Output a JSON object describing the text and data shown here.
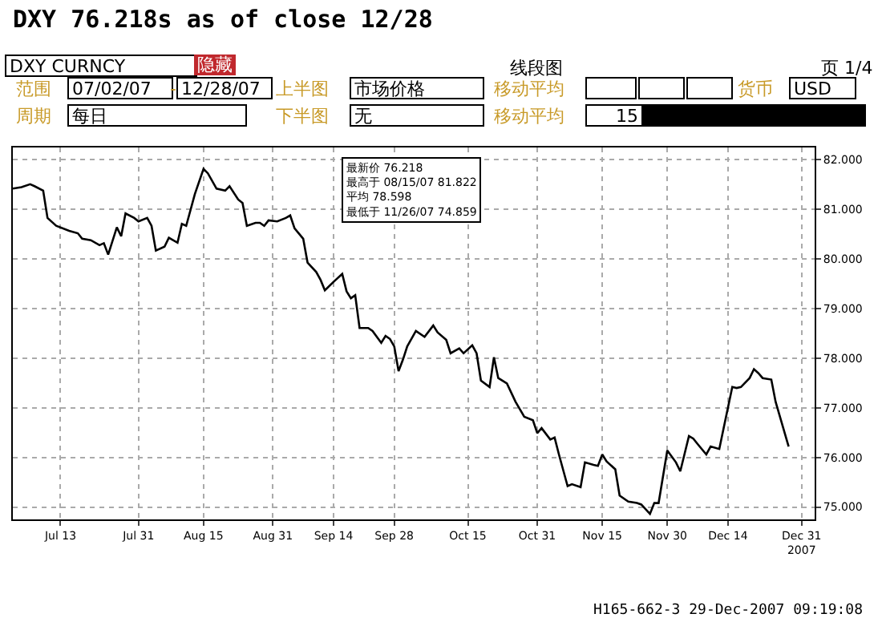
{
  "chart_data": {
    "type": "line",
    "title": "DXY 76.218s as of close 12/28",
    "annotations": [
      "DXY CURNCY",
      "隐藏",
      "线段图",
      "页 1/4",
      "范围",
      "07/02/07",
      "-",
      "12/28/07",
      "上半图",
      "市场价格",
      "移动平均",
      "货币",
      "USD",
      "周期",
      "每日",
      "下半图",
      "无",
      "移动平均",
      "15",
      "最新价 76.218",
      "最高于 08/15/07 81.822",
      "平均 78.598",
      "最低于 11/26/07 74.859",
      "H165-662-3 29-Dec-2007 09:19:08"
    ],
    "x": [
      "2007-07-02",
      "2007-07-04",
      "2007-07-06",
      "2007-07-07",
      "2007-07-09",
      "2007-07-10",
      "2007-07-12",
      "2007-07-15",
      "2007-07-17",
      "2007-07-18",
      "2007-07-20",
      "2007-07-22",
      "2007-07-23",
      "2007-07-24",
      "2007-07-26",
      "2007-07-27",
      "2007-07-28",
      "2007-07-30",
      "2007-07-31",
      "2007-08-02",
      "2007-08-03",
      "2007-08-04",
      "2007-08-06",
      "2007-08-07",
      "2007-08-09",
      "2007-08-10",
      "2007-08-11",
      "2007-08-13",
      "2007-08-15",
      "2007-08-16",
      "2007-08-18",
      "2007-08-20",
      "2007-08-21",
      "2007-08-23",
      "2007-08-24",
      "2007-08-25",
      "2007-08-27",
      "2007-08-28",
      "2007-08-29",
      "2007-08-30",
      "2007-09-01",
      "2007-09-03",
      "2007-09-04",
      "2007-09-05",
      "2007-09-07",
      "2007-09-08",
      "2007-09-10",
      "2007-09-11",
      "2007-09-12",
      "2007-09-14",
      "2007-09-16",
      "2007-09-17",
      "2007-09-18",
      "2007-09-19",
      "2007-09-20",
      "2007-09-22",
      "2007-09-23",
      "2007-09-25",
      "2007-09-26",
      "2007-09-27",
      "2007-09-28",
      "2007-09-29",
      "2007-09-30",
      "2007-10-01",
      "2007-10-03",
      "2007-10-05",
      "2007-10-07",
      "2007-10-08",
      "2007-10-10",
      "2007-10-11",
      "2007-10-13",
      "2007-10-14",
      "2007-10-16",
      "2007-10-17",
      "2007-10-18",
      "2007-10-20",
      "2007-10-21",
      "2007-10-22",
      "2007-10-24",
      "2007-10-26",
      "2007-10-28",
      "2007-10-30",
      "2007-10-31",
      "2007-11-01",
      "2007-11-03",
      "2007-11-04",
      "2007-11-05",
      "2007-11-07",
      "2007-11-08",
      "2007-11-10",
      "2007-11-11",
      "2007-11-13",
      "2007-11-14",
      "2007-11-15",
      "2007-11-16",
      "2007-11-18",
      "2007-11-19",
      "2007-11-21",
      "2007-11-23",
      "2007-11-24",
      "2007-11-26",
      "2007-11-27",
      "2007-11-28",
      "2007-11-30",
      "2007-12-02",
      "2007-12-03",
      "2007-12-05",
      "2007-12-06",
      "2007-12-07",
      "2007-12-09",
      "2007-12-10",
      "2007-12-12",
      "2007-12-13",
      "2007-12-15",
      "2007-12-16",
      "2007-12-17",
      "2007-12-19",
      "2007-12-20",
      "2007-12-21",
      "2007-12-22",
      "2007-12-24",
      "2007-12-25",
      "2007-12-28"
    ],
    "series": [
      {
        "color": "#000000",
        "values": [
          81.42,
          81.45,
          81.51,
          81.47,
          81.38,
          80.83,
          80.67,
          80.57,
          80.52,
          80.41,
          80.38,
          80.28,
          80.32,
          80.09,
          80.64,
          80.46,
          80.92,
          80.83,
          80.76,
          80.83,
          80.67,
          80.17,
          80.25,
          80.43,
          80.33,
          80.71,
          80.67,
          81.31,
          81.82,
          81.73,
          81.42,
          81.38,
          81.47,
          81.2,
          81.13,
          80.67,
          80.73,
          80.73,
          80.67,
          80.78,
          80.76,
          80.83,
          80.88,
          80.62,
          80.41,
          79.93,
          79.74,
          79.58,
          79.37,
          79.54,
          79.7,
          79.35,
          79.21,
          79.27,
          78.61,
          78.61,
          78.55,
          78.31,
          78.45,
          78.39,
          78.24,
          77.74,
          77.97,
          78.24,
          78.55,
          78.43,
          78.66,
          78.52,
          78.37,
          78.1,
          78.2,
          78.1,
          78.26,
          78.1,
          77.55,
          77.42,
          78.02,
          77.6,
          77.49,
          77.12,
          76.82,
          76.75,
          76.49,
          76.59,
          76.36,
          76.4,
          76.06,
          75.42,
          75.46,
          75.4,
          75.9,
          75.85,
          75.83,
          76.06,
          75.92,
          75.76,
          75.23,
          75.11,
          75.08,
          75.05,
          74.86,
          75.08,
          75.08,
          76.14,
          75.9,
          75.72,
          76.43,
          76.38,
          76.27,
          76.06,
          76.22,
          76.17,
          76.59,
          77.42,
          77.4,
          77.42,
          77.6,
          77.78,
          77.7,
          77.6,
          77.57,
          77.12,
          76.218
        ]
      }
    ],
    "xlim": [
      "2007-07-02",
      "2008-01-03"
    ],
    "xticks": [
      {
        "value": "2007-07-13",
        "label": "Jul 13"
      },
      {
        "value": "2007-07-31",
        "label": "Jul 31"
      },
      {
        "value": "2007-08-15",
        "label": "Aug 15"
      },
      {
        "value": "2007-08-31",
        "label": "Aug 31"
      },
      {
        "value": "2007-09-14",
        "label": "Sep 14"
      },
      {
        "value": "2007-09-28",
        "label": "Sep 28"
      },
      {
        "value": "2007-10-15",
        "label": "Oct 15"
      },
      {
        "value": "2007-10-31",
        "label": "Oct 31"
      },
      {
        "value": "2007-11-15",
        "label": "Nov 15"
      },
      {
        "value": "2007-11-30",
        "label": "Nov 30"
      },
      {
        "value": "2007-12-14",
        "label": "Dec 14"
      },
      {
        "value": "2007-12-31",
        "label": "Dec 31\n2007"
      }
    ],
    "ylim": [
      74.75,
      82.25
    ],
    "yticks": [
      {
        "value": 75,
        "label": "75.000"
      },
      {
        "value": 76,
        "label": "76.000"
      },
      {
        "value": 77,
        "label": "77.000"
      },
      {
        "value": 78,
        "label": "78.000"
      },
      {
        "value": 79,
        "label": "79.000"
      },
      {
        "value": 80,
        "label": "80.000"
      },
      {
        "value": 81,
        "label": "81.000"
      },
      {
        "value": 82,
        "label": "82.000"
      }
    ],
    "grid": true
  }
}
